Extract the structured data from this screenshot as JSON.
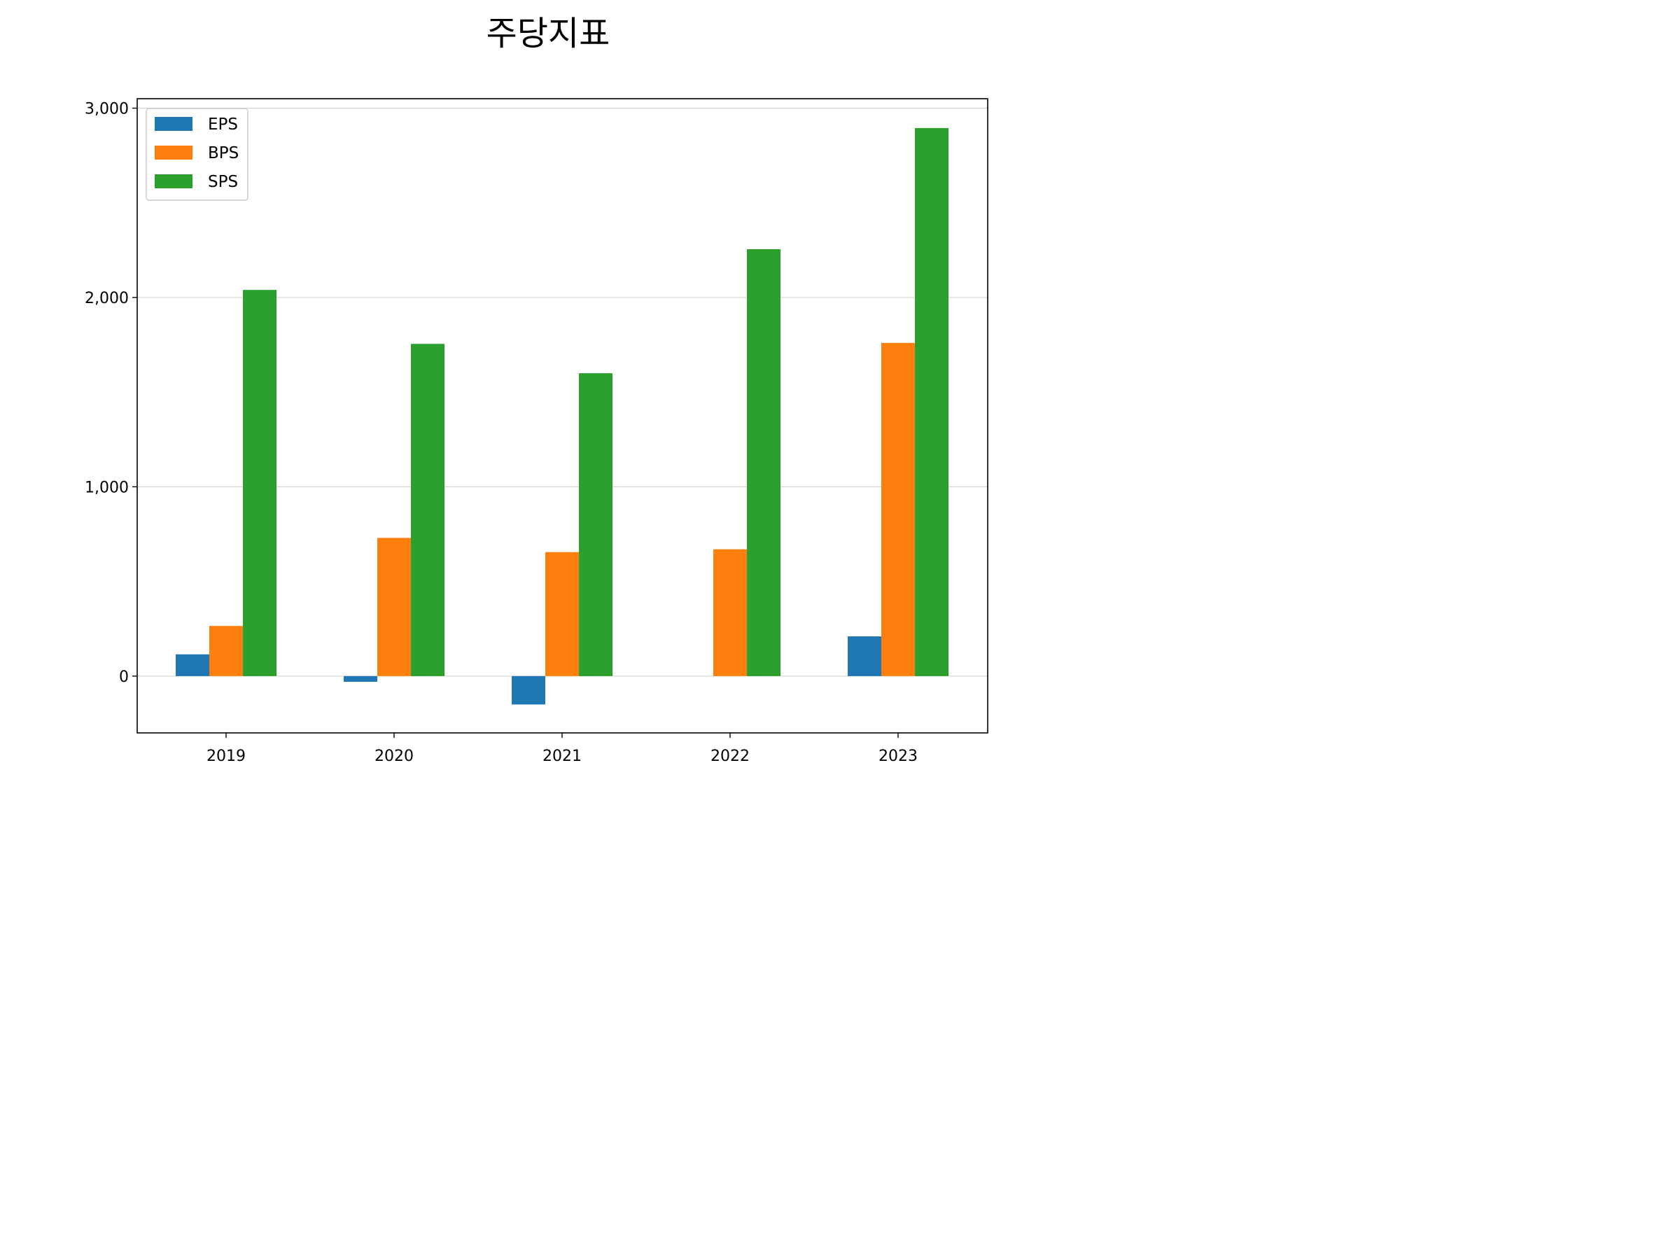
{
  "chart_data": {
    "type": "bar",
    "title": "주당지표",
    "xlabel": "",
    "ylabel": "",
    "categories": [
      "2019",
      "2020",
      "2021",
      "2022",
      "2023"
    ],
    "series": [
      {
        "name": "EPS",
        "color": "#1f77b4",
        "values": [
          115,
          -30,
          -150,
          0,
          210
        ]
      },
      {
        "name": "BPS",
        "color": "#ff7f0e",
        "values": [
          265,
          730,
          655,
          670,
          1760
        ]
      },
      {
        "name": "SPS",
        "color": "#2ca02c",
        "values": [
          2040,
          1755,
          1600,
          2255,
          2895
        ]
      }
    ],
    "ylim": [
      -300,
      3050
    ],
    "yticks": [
      0,
      1000,
      2000,
      3000
    ],
    "ytick_labels": [
      "0",
      "1,000",
      "2,000",
      "3,000"
    ],
    "grid": "horizontal",
    "legend_position": "top-left"
  }
}
